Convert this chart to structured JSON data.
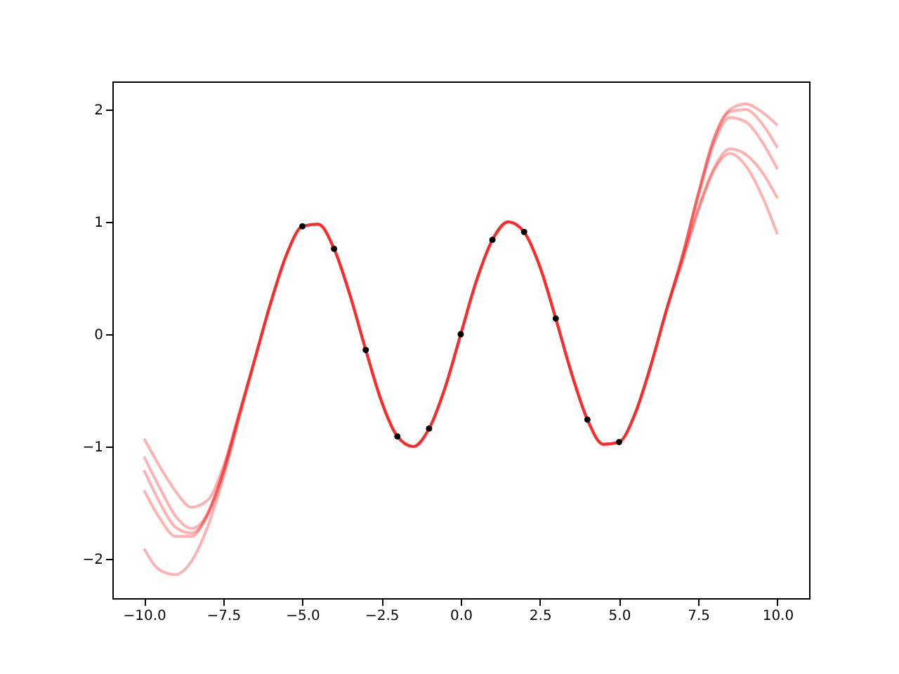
{
  "chart_data": {
    "type": "line",
    "x": [
      -10,
      -9.5,
      -9,
      -8.5,
      -8,
      -7.5,
      -7,
      -6.5,
      -6,
      -5.5,
      -5,
      -4.5,
      -4,
      -3.5,
      -3,
      -2.5,
      -2,
      -1.5,
      -1,
      -0.5,
      0,
      0.5,
      1,
      1.5,
      2,
      2.5,
      3,
      3.5,
      4,
      4.5,
      5,
      5.5,
      6,
      6.5,
      7,
      7.5,
      8,
      8.5,
      9,
      9.5,
      10
    ],
    "series": [
      {
        "color": "#ff0000",
        "values": [
          -0.93,
          -1.18,
          -1.4,
          -1.54,
          -1.48,
          -1.18,
          -0.7,
          -0.22,
          0.28,
          0.71,
          0.96,
          0.98,
          0.76,
          0.35,
          -0.14,
          -0.6,
          -0.91,
          -1.0,
          -0.84,
          -0.48,
          0,
          0.48,
          0.84,
          1.0,
          0.91,
          0.6,
          0.14,
          -0.35,
          -0.76,
          -0.98,
          -0.96,
          -0.71,
          -0.28,
          0.22,
          0.7,
          1.25,
          1.75,
          2.0,
          2.05,
          1.98,
          1.86
        ]
      },
      {
        "color": "#ff0000",
        "values": [
          -1.09,
          -1.37,
          -1.62,
          -1.73,
          -1.6,
          -1.22,
          -0.72,
          -0.22,
          0.28,
          0.71,
          0.96,
          0.98,
          0.76,
          0.35,
          -0.14,
          -0.6,
          -0.91,
          -1.0,
          -0.84,
          -0.48,
          0,
          0.48,
          0.84,
          1.0,
          0.91,
          0.6,
          0.14,
          -0.35,
          -0.76,
          -0.98,
          -0.96,
          -0.71,
          -0.28,
          0.22,
          0.7,
          1.25,
          1.74,
          1.98,
          2.0,
          1.88,
          1.66
        ]
      },
      {
        "color": "#ff0000",
        "values": [
          -1.21,
          -1.5,
          -1.72,
          -1.77,
          -1.62,
          -1.24,
          -0.73,
          -0.22,
          0.28,
          0.71,
          0.96,
          0.98,
          0.76,
          0.35,
          -0.14,
          -0.6,
          -0.91,
          -1.0,
          -0.84,
          -0.48,
          0,
          0.48,
          0.84,
          1.0,
          0.91,
          0.6,
          0.14,
          -0.35,
          -0.76,
          -0.98,
          -0.96,
          -0.71,
          -0.28,
          0.22,
          0.69,
          1.23,
          1.7,
          1.93,
          1.89,
          1.72,
          1.47
        ]
      },
      {
        "color": "#ff0000",
        "values": [
          -1.39,
          -1.64,
          -1.8,
          -1.8,
          -1.6,
          -1.22,
          -0.72,
          -0.22,
          0.28,
          0.71,
          0.96,
          0.98,
          0.76,
          0.35,
          -0.14,
          -0.6,
          -0.91,
          -1.0,
          -0.84,
          -0.48,
          0,
          0.48,
          0.84,
          1.0,
          0.91,
          0.6,
          0.14,
          -0.35,
          -0.76,
          -0.98,
          -0.96,
          -0.71,
          -0.28,
          0.22,
          0.66,
          1.12,
          1.48,
          1.65,
          1.6,
          1.45,
          1.21
        ]
      },
      {
        "color": "#ff0000",
        "values": [
          -1.91,
          -2.1,
          -2.14,
          -2.02,
          -1.72,
          -1.28,
          -0.75,
          -0.22,
          0.28,
          0.71,
          0.96,
          0.98,
          0.76,
          0.35,
          -0.14,
          -0.6,
          -0.91,
          -1.0,
          -0.84,
          -0.48,
          0,
          0.48,
          0.84,
          1.0,
          0.91,
          0.6,
          0.14,
          -0.35,
          -0.76,
          -0.98,
          -0.96,
          -0.71,
          -0.28,
          0.22,
          0.65,
          1.1,
          1.46,
          1.61,
          1.5,
          1.24,
          0.89
        ]
      },
      {
        "type": "scatter",
        "color": "#000000",
        "marker": "circle",
        "x": [
          -5,
          -4,
          -3,
          -2,
          -1,
          0,
          1,
          2,
          3,
          4,
          5
        ],
        "values": [
          0.96,
          0.76,
          -0.14,
          -0.91,
          -0.84,
          0,
          0.84,
          0.91,
          0.14,
          -0.76,
          -0.96
        ]
      }
    ],
    "xlim": [
      -11,
      11
    ],
    "ylim": [
      -2.35,
      2.25
    ],
    "xticks": [
      {
        "value": -10,
        "label": "−10.0"
      },
      {
        "value": -7.5,
        "label": "−7.5"
      },
      {
        "value": -5,
        "label": "−5.0"
      },
      {
        "value": -2.5,
        "label": "−2.5"
      },
      {
        "value": 0,
        "label": "0.0"
      },
      {
        "value": 2.5,
        "label": "2.5"
      },
      {
        "value": 5,
        "label": "5.0"
      },
      {
        "value": 7.5,
        "label": "7.5"
      },
      {
        "value": 10,
        "label": "10.0"
      }
    ],
    "yticks": [
      {
        "value": -2,
        "label": "−2"
      },
      {
        "value": -1,
        "label": "−1"
      },
      0,
      1,
      2
    ],
    "grid": false
  }
}
